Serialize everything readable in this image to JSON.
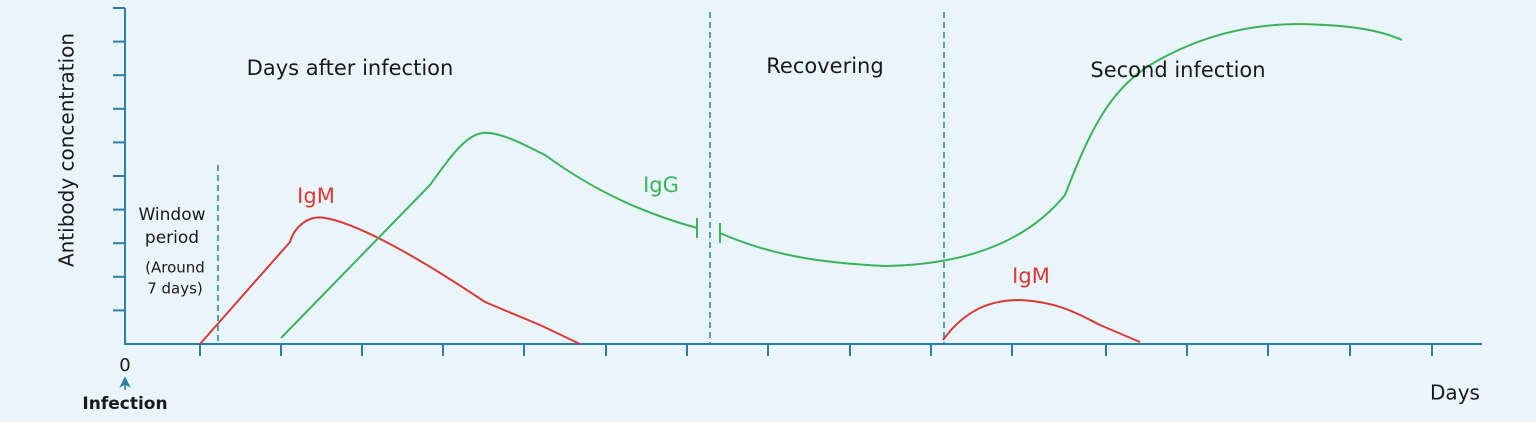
{
  "y_axis_label": "Antibody concentration",
  "x_axis_label": "Days",
  "origin_label": "0",
  "origin_note": "Infection",
  "window_period": [
    "Window",
    "period"
  ],
  "window_note": [
    "(Around",
    "7 days)"
  ],
  "phases": [
    "Days after infection",
    "Recovering",
    "Second infection"
  ],
  "curve_labels": [
    "IgM",
    "IgG",
    "IgM"
  ]
}
